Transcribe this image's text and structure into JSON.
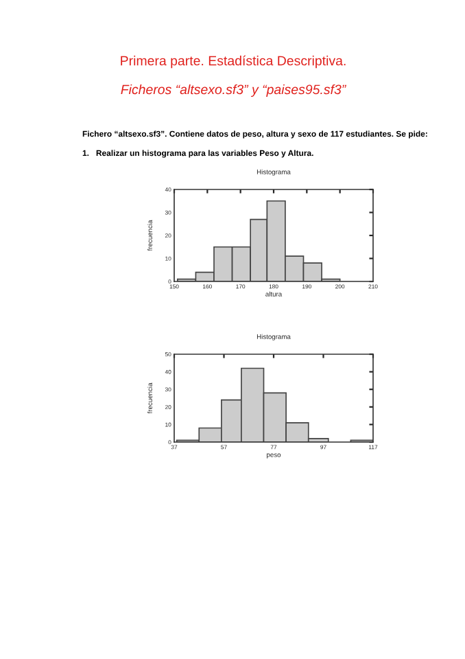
{
  "chart_data": [
    {
      "type": "histogram",
      "title": "Histograma",
      "xlabel": "altura",
      "ylabel": "frecuencia",
      "color": "#cccccc",
      "annotations": [
        "Primera parte. Estadística Descriptiva.",
        "Ficheros “altsexo.sf3” y “paises95.sf3”",
        "Fichero “altsexo.sf3”. Contiene datos de peso, altura y sexo de 117 estudiantes. Se pide:",
        "1.   Realizar un histograma para las variables Peso y Altura."
      ],
      "bins": [
        151,
        156.5,
        162,
        167.5,
        173,
        178,
        183.5,
        189,
        194.5,
        200,
        205,
        210
      ],
      "values": [
        1,
        4,
        15,
        15,
        27,
        35,
        11,
        8,
        1,
        0,
        0
      ],
      "xlim": [
        150,
        210
      ],
      "xticks": [
        150,
        160,
        170,
        180,
        190,
        200,
        210
      ],
      "ylim": [
        0,
        40
      ],
      "yticks": [
        0,
        10,
        20,
        30,
        40
      ]
    },
    {
      "type": "histogram",
      "title": "Histograma",
      "xlabel": "peso",
      "ylabel": "frecuencia",
      "color": "#cccccc",
      "bins": [
        38,
        47,
        56,
        64,
        73,
        82,
        91,
        99,
        108,
        117
      ],
      "values": [
        1,
        8,
        24,
        42,
        28,
        11,
        2,
        0,
        1
      ],
      "xlim": [
        37,
        117
      ],
      "xticks": [
        37,
        57,
        77,
        97,
        117
      ],
      "ylim": [
        0,
        50
      ],
      "yticks": [
        0,
        10,
        20,
        30,
        40,
        50
      ]
    }
  ]
}
